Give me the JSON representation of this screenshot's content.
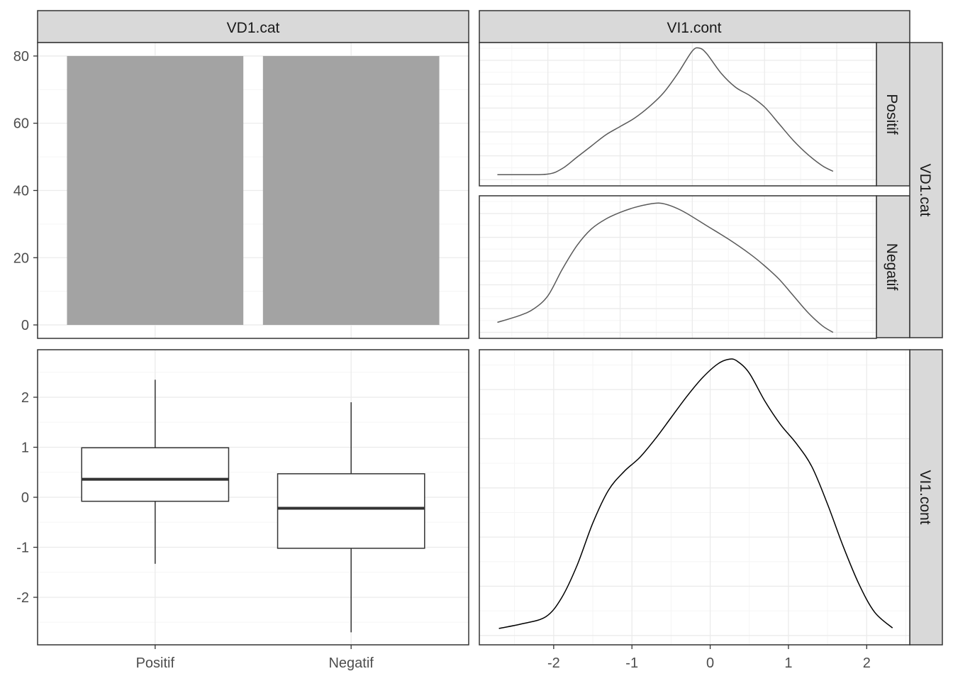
{
  "chart_data": [
    {
      "type": "bar",
      "panel": "VD1.cat x VD1.cat",
      "strip_top": "VD1.cat",
      "categories": [
        "Positif",
        "Negatif"
      ],
      "values": [
        80,
        80
      ],
      "ylim": [
        -4,
        84
      ],
      "yticks": [
        0,
        20,
        40,
        60,
        80
      ],
      "ytick_labels": [
        "0",
        "20",
        "40",
        "60",
        "80"
      ],
      "bar_color": "#a3a3a3",
      "grid": true
    },
    {
      "type": "line",
      "panel": "VI1.cont by VD1.cat = Positif (density)",
      "strip_top": "VI1.cont",
      "strip_right": "Positif",
      "x": [
        -2.7,
        -2.4,
        -2.0,
        -1.8,
        -1.6,
        -1.4,
        -1.2,
        -1.0,
        -0.8,
        -0.6,
        -0.4,
        -0.2,
        0.0,
        0.1,
        0.2,
        0.4,
        0.6,
        0.8,
        1.0,
        1.2,
        1.4,
        1.6,
        1.8,
        1.95
      ],
      "y": [
        0.018,
        0.018,
        0.02,
        0.04,
        0.08,
        0.12,
        0.16,
        0.19,
        0.22,
        0.26,
        0.31,
        0.38,
        0.46,
        0.47,
        0.45,
        0.38,
        0.33,
        0.3,
        0.26,
        0.2,
        0.14,
        0.09,
        0.05,
        0.03
      ],
      "xlim": [
        -2.95,
        2.55
      ],
      "ylim": [
        -0.022,
        0.49
      ],
      "line_color": "#595959",
      "grid": true
    },
    {
      "type": "line",
      "panel": "VI1.cont by VD1.cat = Negatif (density)",
      "strip_right": "Negatif",
      "x": [
        -2.7,
        -2.4,
        -2.2,
        -2.0,
        -1.8,
        -1.6,
        -1.4,
        -1.2,
        -1.0,
        -0.8,
        -0.6,
        -0.45,
        -0.3,
        -0.1,
        0.2,
        0.5,
        0.8,
        1.0,
        1.2,
        1.4,
        1.6,
        1.8,
        1.95
      ],
      "y": [
        0.03,
        0.05,
        0.07,
        0.11,
        0.19,
        0.26,
        0.31,
        0.34,
        0.36,
        0.375,
        0.385,
        0.388,
        0.38,
        0.36,
        0.32,
        0.28,
        0.235,
        0.2,
        0.16,
        0.11,
        0.06,
        0.02,
        0.0
      ],
      "xlim": [
        -2.95,
        2.55
      ],
      "ylim": [
        -0.018,
        0.41
      ],
      "line_color": "#595959",
      "grid": true
    },
    {
      "type": "box",
      "panel": "VD1.cat x VI1.cont (boxplot)",
      "categories": [
        "Positif",
        "Negatif"
      ],
      "boxes": [
        {
          "category": "Positif",
          "whisker_low": -1.33,
          "q1": -0.08,
          "median": 0.36,
          "q3": 0.99,
          "whisker_high": 2.35
        },
        {
          "category": "Negatif",
          "whisker_low": -2.7,
          "q1": -1.02,
          "median": -0.22,
          "q3": 0.47,
          "whisker_high": 1.9
        }
      ],
      "ylim": [
        -2.95,
        2.95
      ],
      "yticks": [
        -2,
        -1,
        0,
        1,
        2
      ],
      "ytick_labels": [
        "-2",
        "-1",
        "0",
        "1",
        "2"
      ],
      "xtick_labels": [
        "Positif",
        "Negatif"
      ],
      "grid": true
    },
    {
      "type": "line",
      "panel": "VI1.cont x VI1.cont (density)",
      "strip_right": "VI1.cont",
      "x": [
        -2.7,
        -2.4,
        -2.1,
        -1.9,
        -1.7,
        -1.5,
        -1.3,
        -1.1,
        -0.9,
        -0.7,
        -0.5,
        -0.3,
        -0.1,
        0.1,
        0.25,
        0.35,
        0.5,
        0.7,
        0.9,
        1.1,
        1.3,
        1.5,
        1.7,
        1.9,
        2.1,
        2.33
      ],
      "y": [
        0.015,
        0.025,
        0.04,
        0.08,
        0.15,
        0.24,
        0.31,
        0.35,
        0.38,
        0.42,
        0.465,
        0.51,
        0.55,
        0.58,
        0.59,
        0.585,
        0.56,
        0.5,
        0.45,
        0.41,
        0.36,
        0.28,
        0.19,
        0.11,
        0.05,
        0.016
      ],
      "xlim": [
        -2.95,
        2.55
      ],
      "ylim": [
        -0.02,
        0.61
      ],
      "xticks": [
        -2,
        -1,
        0,
        1,
        2
      ],
      "xtick_labels": [
        "-2",
        "-1",
        "0",
        "1",
        "2"
      ],
      "line_color": "#000000",
      "grid": true
    }
  ]
}
